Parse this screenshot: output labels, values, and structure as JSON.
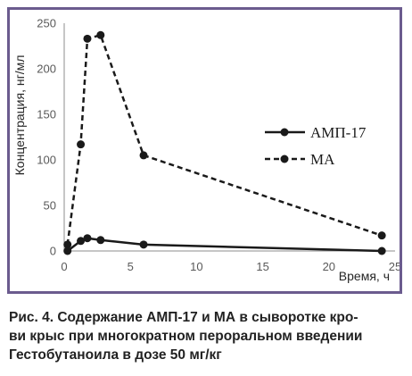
{
  "chart_data": {
    "type": "line",
    "xlabel": "Время, ч",
    "ylabel": "Концентрация, нг/мл",
    "xlim": [
      0,
      25
    ],
    "ylim": [
      0,
      250
    ],
    "x_ticks": [
      0,
      5,
      10,
      15,
      20,
      25
    ],
    "y_ticks": [
      0,
      50,
      100,
      150,
      200,
      250
    ],
    "grid": false,
    "legend_position": "right",
    "series": [
      {
        "name": "АМП-17",
        "line_style": "solid",
        "color": "#1a1a1a",
        "x": [
          0.25,
          1.25,
          1.75,
          2.75,
          6,
          24
        ],
        "y": [
          0,
          11,
          14,
          12,
          7,
          0
        ]
      },
      {
        "name": "МА",
        "line_style": "dashed",
        "color": "#1a1a1a",
        "x": [
          0.25,
          1.25,
          1.75,
          2.75,
          6,
          24
        ],
        "y": [
          7,
          117,
          233,
          237,
          105,
          17
        ]
      }
    ]
  },
  "caption": {
    "lines": [
      "Рис. 4. Содержание АМП-17 и МА в сыворотке кро-",
      "ви крыс при многократном пероральном введении",
      "Гестобутаноила в дозе 50 мг/кг"
    ]
  }
}
